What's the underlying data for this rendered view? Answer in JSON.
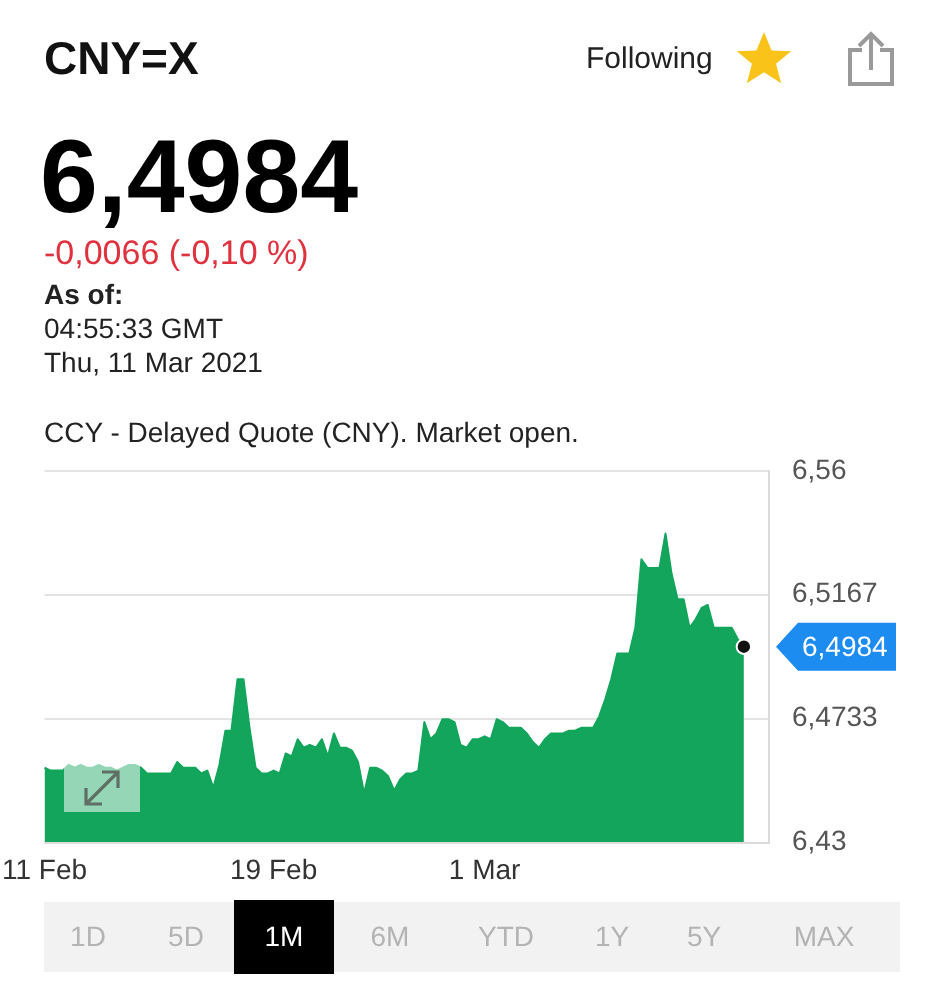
{
  "chart_data": {
    "type": "area",
    "title": "CNY=X",
    "subtitle": "CCY - Delayed Quote (CNY). Market open.",
    "categories": [
      "11 Feb",
      null,
      null,
      null,
      null,
      null,
      null,
      null,
      null,
      null,
      null,
      null,
      null,
      null,
      null,
      null,
      null,
      null,
      null,
      null,
      null,
      null,
      null,
      null,
      null,
      null,
      null,
      null,
      null,
      null,
      null,
      null,
      null,
      null,
      null,
      null,
      null,
      null,
      "19 Feb",
      null,
      null,
      null,
      null,
      null,
      null,
      null,
      null,
      null,
      null,
      null,
      null,
      null,
      null,
      null,
      null,
      null,
      null,
      null,
      null,
      null,
      null,
      null,
      null,
      null,
      null,
      null,
      null,
      null,
      null,
      null,
      null,
      null,
      null,
      "1 Mar",
      null,
      null,
      null,
      null,
      null,
      null,
      null,
      null,
      null,
      null,
      null,
      null,
      null,
      null,
      null,
      null,
      null,
      null,
      null,
      null,
      null,
      null,
      null,
      null,
      null,
      null,
      null,
      null,
      null,
      null,
      null,
      null,
      null,
      null,
      null,
      null,
      null,
      null,
      null,
      null,
      null,
      null,
      null,
      null,
      null,
      null,
      null
    ],
    "series": [
      {
        "color": "#12a55b",
        "values": [
          6.456,
          6.455,
          6.455,
          6.455,
          6.457,
          6.456,
          6.457,
          6.456,
          6.456,
          6.457,
          6.456,
          6.456,
          6.455,
          6.456,
          6.457,
          6.457,
          6.456,
          6.454,
          6.454,
          6.454,
          6.454,
          6.454,
          6.458,
          6.456,
          6.456,
          6.456,
          6.454,
          6.455,
          6.449,
          6.457,
          6.469,
          6.469,
          6.487,
          6.487,
          6.47,
          6.456,
          6.454,
          6.454,
          6.455,
          6.454,
          6.461,
          6.46,
          6.466,
          6.463,
          6.464,
          6.463,
          6.466,
          6.46,
          6.468,
          6.463,
          6.463,
          6.462,
          6.458,
          6.447,
          6.456,
          6.456,
          6.455,
          6.453,
          6.448,
          6.452,
          6.454,
          6.454,
          6.455,
          6.472,
          6.466,
          6.468,
          6.473,
          6.473,
          6.472,
          6.464,
          6.463,
          6.466,
          6.466,
          6.467,
          6.466,
          6.473,
          6.472,
          6.47,
          6.47,
          6.47,
          6.468,
          6.465,
          6.463,
          6.466,
          6.468,
          6.468,
          6.468,
          6.469,
          6.469,
          6.47,
          6.47,
          6.47,
          6.474,
          6.48,
          6.487,
          6.496,
          6.496,
          6.496,
          6.505,
          6.529,
          6.526,
          6.526,
          6.526,
          6.538,
          6.524,
          6.515,
          6.515,
          6.505,
          6.508,
          6.512,
          6.513,
          6.505,
          6.505,
          6.505,
          6.505,
          6.501,
          6.4984,
          null,
          null,
          null,
          null
        ],
        "value_labels": [
          null,
          null,
          null,
          null,
          null,
          null,
          null,
          null,
          null,
          null,
          null,
          null,
          null,
          null,
          null,
          null,
          null,
          null,
          null,
          null,
          null,
          null,
          null,
          null,
          null,
          null,
          null,
          null,
          null,
          null,
          null,
          null,
          null,
          null,
          null,
          null,
          null,
          null,
          null,
          null,
          null,
          null,
          null,
          null,
          null,
          null,
          null,
          null,
          null,
          null,
          null,
          null,
          null,
          null,
          null,
          null,
          null,
          null,
          null,
          null,
          null,
          null,
          null,
          null,
          null,
          null,
          null,
          null,
          null,
          null,
          null,
          null,
          null,
          null,
          null,
          null,
          null,
          null,
          null,
          null,
          null,
          null,
          null,
          null,
          null,
          null,
          null,
          null,
          null,
          null,
          null,
          null,
          null,
          null,
          null,
          null,
          null,
          null,
          null,
          null,
          null,
          null,
          null,
          null,
          null,
          null,
          null,
          null,
          null,
          null,
          null,
          null,
          null,
          null,
          null,
          null,
          "6,4984",
          null,
          null,
          null,
          null
        ]
      }
    ],
    "ylim": [
      6.43,
      6.56
    ],
    "yticks": [
      {
        "value": 6.43,
        "label": "6,43"
      },
      {
        "value": 6.4733,
        "label": "6,4733"
      },
      {
        "value": 6.5167,
        "label": "6,5167"
      },
      {
        "value": 6.56,
        "label": "6,56"
      }
    ],
    "grid": "y",
    "annotations": [
      "Following",
      "6,4984",
      "-0,0066 (-0,10 %)",
      "As of:",
      "04:55:33 GMT",
      "Thu, 11 Mar 2021",
      "1D",
      "5D",
      "1M",
      "6M",
      "YTD",
      "1Y",
      "5Y",
      "MAX"
    ]
  }
}
